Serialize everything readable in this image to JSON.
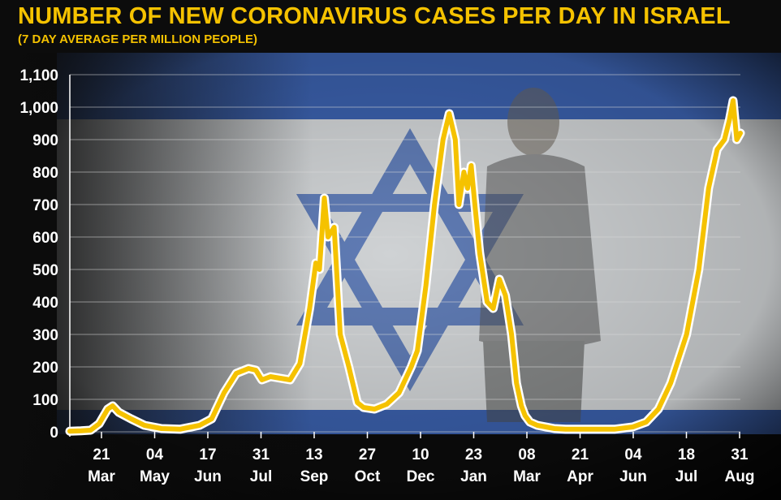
{
  "colors": {
    "accent": "#f5c200",
    "background": "#0c0c0c",
    "flag_blue": "#3a5faa",
    "flag_white": "#e4e8ea",
    "grid": "#d9d9d9",
    "text": "#ffffff"
  },
  "chart_data": {
    "type": "line",
    "title": "NUMBER OF NEW CORONAVIRUS CASES PER DAY IN ISRAEL",
    "subtitle": "(7 DAY AVERAGE PER MILLION PEOPLE)",
    "ylim": [
      0,
      1100
    ],
    "y_ticks": [
      "0",
      "100",
      "200",
      "300",
      "400",
      "500",
      "600",
      "700",
      "800",
      "900",
      "1,000",
      "1,100"
    ],
    "x_ticks": [
      {
        "day": "21",
        "month": "Mar"
      },
      {
        "day": "04",
        "month": "May"
      },
      {
        "day": "17",
        "month": "Jun"
      },
      {
        "day": "31",
        "month": "Jul"
      },
      {
        "day": "13",
        "month": "Sep"
      },
      {
        "day": "27",
        "month": "Oct"
      },
      {
        "day": "10",
        "month": "Dec"
      },
      {
        "day": "23",
        "month": "Jan"
      },
      {
        "day": "08",
        "month": "Mar"
      },
      {
        "day": "21",
        "month": "Apr"
      },
      {
        "day": "04",
        "month": "Jun"
      },
      {
        "day": "18",
        "month": "Jul"
      },
      {
        "day": "31",
        "month": "Aug"
      }
    ],
    "grid": true,
    "legend": "none",
    "series": [
      {
        "x": [
          "2020-03-01",
          "2020-03-10",
          "2020-03-18",
          "2020-03-25",
          "2020-04-01",
          "2020-04-05",
          "2020-04-10",
          "2020-04-20",
          "2020-05-01",
          "2020-05-15",
          "2020-05-30",
          "2020-06-15",
          "2020-06-25",
          "2020-07-05",
          "2020-07-15",
          "2020-07-25",
          "2020-07-31",
          "2020-08-05",
          "2020-08-12",
          "2020-08-20",
          "2020-08-28",
          "2020-09-05",
          "2020-09-13",
          "2020-09-18",
          "2020-09-21",
          "2020-09-25",
          "2020-09-28",
          "2020-10-03",
          "2020-10-08",
          "2020-10-15",
          "2020-10-22",
          "2020-10-27",
          "2020-11-05",
          "2020-11-15",
          "2020-11-25",
          "2020-12-05",
          "2020-12-10",
          "2020-12-17",
          "2020-12-24",
          "2020-12-31",
          "2021-01-05",
          "2021-01-10",
          "2021-01-13",
          "2021-01-17",
          "2021-01-20",
          "2021-01-23",
          "2021-01-26",
          "2021-01-30",
          "2021-02-05",
          "2021-02-10",
          "2021-02-15",
          "2021-02-20",
          "2021-02-25",
          "2021-03-01",
          "2021-03-05",
          "2021-03-08",
          "2021-03-12",
          "2021-03-18",
          "2021-03-25",
          "2021-04-01",
          "2021-04-10",
          "2021-04-21",
          "2021-05-05",
          "2021-05-20",
          "2021-06-04",
          "2021-06-15",
          "2021-06-25",
          "2021-07-05",
          "2021-07-18",
          "2021-07-28",
          "2021-08-05",
          "2021-08-12",
          "2021-08-18",
          "2021-08-22",
          "2021-08-25",
          "2021-08-28",
          "2021-08-31"
        ],
        "y": [
          2,
          3,
          5,
          25,
          70,
          80,
          60,
          40,
          20,
          10,
          8,
          20,
          40,
          120,
          180,
          195,
          190,
          160,
          170,
          165,
          160,
          210,
          380,
          520,
          500,
          720,
          600,
          630,
          300,
          200,
          90,
          75,
          70,
          85,
          120,
          200,
          250,
          450,
          700,
          900,
          980,
          900,
          700,
          800,
          750,
          820,
          700,
          550,
          400,
          380,
          470,
          420,
          300,
          150,
          80,
          50,
          30,
          20,
          15,
          10,
          8,
          8,
          8,
          8,
          15,
          30,
          70,
          150,
          300,
          500,
          750,
          870,
          900,
          960,
          1020,
          900,
          920
        ]
      }
    ]
  }
}
